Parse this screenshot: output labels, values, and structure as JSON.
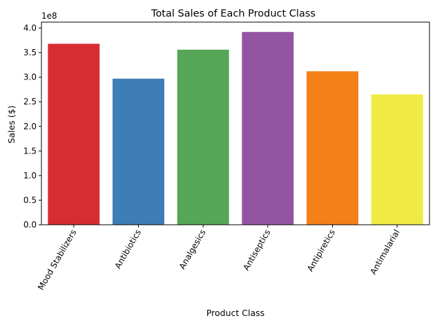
{
  "chart_data": {
    "type": "bar",
    "title": "Total Sales of Each Product Class",
    "xlabel": "Product Class",
    "ylabel": "Sales ($)",
    "y_multiplier": "1e8",
    "categories": [
      "Mood Stabilizers",
      "Antibiotics",
      "Analgesics",
      "Antiseptics",
      "Antipiretics",
      "Antimalarial"
    ],
    "values": [
      368000000,
      297000000,
      356000000,
      392000000,
      312000000,
      265000000
    ],
    "colors": [
      "#d62d32",
      "#3e7db5",
      "#55a657",
      "#9355a1",
      "#f38118",
      "#f0eb44"
    ],
    "ylim": [
      0,
      412000000
    ],
    "yticks": [
      0,
      50000000,
      100000000,
      150000000,
      200000000,
      250000000,
      300000000,
      350000000,
      400000000
    ],
    "ytick_labels": [
      "0.0",
      "0.5",
      "1.0",
      "1.5",
      "2.0",
      "2.5",
      "3.0",
      "3.5",
      "4.0"
    ],
    "grid": false,
    "legend": "none"
  }
}
